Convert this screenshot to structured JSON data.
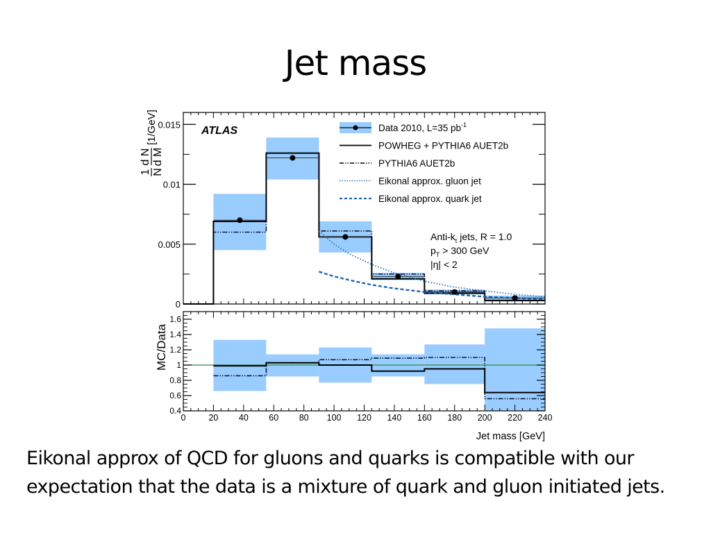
{
  "slide": {
    "title": "Jet mass",
    "caption": "Eikonal approx of QCD for gluons and quarks is compatible with our expectation that the data is a mixture of quark and gluon initiated jets."
  },
  "chart_data": [
    {
      "type": "bar",
      "panel": "main",
      "experiment_label": "ATLAS",
      "ylabel": "1/N dN/dM [1/GeV]",
      "ylabel_parts": {
        "frac1_num": "1",
        "frac1_den": "N",
        "frac2_num": "d N",
        "frac2_den": "d M",
        "unit": "[1/GeV]"
      },
      "xlim": [
        0,
        240
      ],
      "ylim": [
        0,
        0.016
      ],
      "yticks": [
        "0",
        "0.005",
        "0.01",
        "0.015"
      ],
      "ytick_values": [
        0,
        0.005,
        0.01,
        0.015
      ],
      "bin_edges": [
        0,
        20,
        55,
        90,
        125,
        160,
        200,
        240
      ],
      "annotations": [
        "Anti-k_t jets, R = 1.0",
        "p_T > 300 GeV",
        "|η| < 2"
      ],
      "annotation_parts": [
        {
          "main": "Anti-k",
          "sub": "t",
          "rest": " jets, R = 1.0"
        },
        {
          "main": "p",
          "sub": "T",
          "rest": " > 300 GeV"
        },
        {
          "main": "|η| < 2",
          "sub": "",
          "rest": ""
        }
      ],
      "legend_position": "top-right",
      "legend": [
        {
          "key": "data",
          "label": "Data 2010, L=35 pb",
          "sup": "-1"
        },
        {
          "key": "powheg",
          "label": "POWHEG + PYTHIA6 AUET2b",
          "sup": ""
        },
        {
          "key": "pythia",
          "label": "PYTHIA6 AUET2b",
          "sup": ""
        },
        {
          "key": "gluon",
          "label": "Eikonal approx. gluon jet",
          "sup": ""
        },
        {
          "key": "quark",
          "label": "Eikonal approx. quark jet",
          "sup": ""
        }
      ],
      "series": [
        {
          "name": "Data 2010, L=35 pb-1",
          "x": [
            37.5,
            72.5,
            107.5,
            142.5,
            180,
            220
          ],
          "values": [
            0.007,
            0.0122,
            0.0056,
            0.0023,
            0.001,
            0.0005
          ],
          "band_low": [
            0.0,
            0.0045,
            0.0104,
            0.0043,
            0.002,
            0.0008,
            0.0002
          ],
          "band_high": [
            0.0,
            0.0092,
            0.0139,
            0.0069,
            0.0026,
            0.0012,
            0.0007
          ]
        },
        {
          "name": "POWHEG + PYTHIA6 AUET2b",
          "values": [
            0.0,
            0.0069,
            0.0126,
            0.0056,
            0.0021,
            0.0009,
            0.0003
          ]
        },
        {
          "name": "PYTHIA6 AUET2b",
          "values": [
            0.0,
            0.006,
            0.0126,
            0.0061,
            0.0025,
            0.0011,
            0.0003
          ]
        },
        {
          "name": "Eikonal approx. gluon jet",
          "x": [
            90,
            100,
            110,
            125,
            140,
            160,
            180,
            200,
            220,
            240
          ],
          "values": [
            0.0061,
            0.005,
            0.0042,
            0.0033,
            0.0026,
            0.0019,
            0.0014,
            0.0011,
            0.0008,
            0.0006
          ]
        },
        {
          "name": "Eikonal approx. quark jet",
          "x": [
            90,
            100,
            110,
            125,
            140,
            160,
            180,
            200,
            220,
            240
          ],
          "values": [
            0.0027,
            0.0023,
            0.002,
            0.0016,
            0.0013,
            0.001,
            0.0008,
            0.0006,
            0.0005,
            0.0004
          ]
        }
      ],
      "colors": {
        "band": "#99ccff",
        "gluon": "#2a6fb5",
        "quark": "#1f64b0"
      }
    },
    {
      "type": "bar",
      "panel": "ratio",
      "ylabel": "MC/Data",
      "xlabel": "Jet mass [GeV]",
      "xlim": [
        0,
        240
      ],
      "ylim": [
        0.4,
        1.7
      ],
      "xticks": [
        "0",
        "20",
        "40",
        "60",
        "80",
        "100",
        "120",
        "140",
        "160",
        "180",
        "200",
        "220",
        "240"
      ],
      "xtick_values": [
        0,
        20,
        40,
        60,
        80,
        100,
        120,
        140,
        160,
        180,
        200,
        220,
        240
      ],
      "yticks": [
        "0.4",
        "0.6",
        "0.8",
        "1",
        "1.2",
        "1.4",
        "1.6"
      ],
      "ytick_values": [
        0.4,
        0.6,
        0.8,
        1.0,
        1.2,
        1.4,
        1.6
      ],
      "bin_edges": [
        20,
        55,
        90,
        125,
        160,
        200,
        240
      ],
      "reference_line": 1.0,
      "series": [
        {
          "name": "Data uncertainty band",
          "band_low": [
            0.66,
            0.85,
            0.77,
            0.85,
            0.75,
            0.4
          ],
          "band_high": [
            1.33,
            1.14,
            1.23,
            1.14,
            1.27,
            1.48
          ]
        },
        {
          "name": "POWHEG + PYTHIA6 AUET2b",
          "values": [
            0.99,
            1.03,
            1.0,
            0.92,
            0.95,
            0.64
          ]
        },
        {
          "name": "PYTHIA6 AUET2b",
          "values": [
            0.86,
            1.03,
            1.07,
            1.09,
            1.1,
            0.56
          ]
        }
      ],
      "colors": {
        "band": "#99ccff",
        "reference": "#2e8b3a"
      }
    }
  ]
}
